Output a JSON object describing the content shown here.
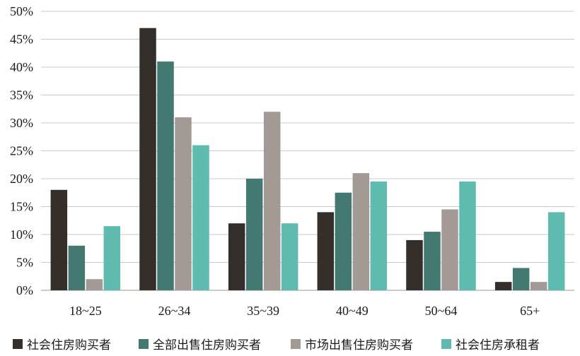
{
  "chart_data": {
    "type": "bar",
    "title": "",
    "xlabel": "",
    "ylabel": "",
    "categories": [
      "18~25",
      "26~34",
      "35~39",
      "40~49",
      "50~64",
      "65+"
    ],
    "series": [
      {
        "name": "社会住房购买者",
        "color": "#352f2c",
        "values": [
          18,
          47,
          12,
          14,
          9,
          1.5
        ]
      },
      {
        "name": "全部出售住房购买者",
        "color": "#437971",
        "values": [
          8,
          41,
          20,
          17.5,
          10.5,
          4
        ]
      },
      {
        "name": "市场出售住房购买者",
        "color": "#a39a95",
        "values": [
          2,
          31,
          32,
          21,
          14.5,
          1.5
        ]
      },
      {
        "name": "社会住房承租者",
        "color": "#5fbab0",
        "values": [
          11.5,
          26,
          12,
          19.5,
          19.5,
          14
        ]
      }
    ],
    "ylim": [
      0,
      50
    ],
    "yticks": [
      0,
      5,
      10,
      15,
      20,
      25,
      30,
      35,
      40,
      45,
      50
    ],
    "ytick_labels": [
      "0%",
      "5%",
      "10%",
      "15%",
      "20%",
      "25%",
      "30%",
      "35%",
      "40%",
      "45%",
      "50%"
    ],
    "grid": true,
    "legend_position": "bottom"
  }
}
